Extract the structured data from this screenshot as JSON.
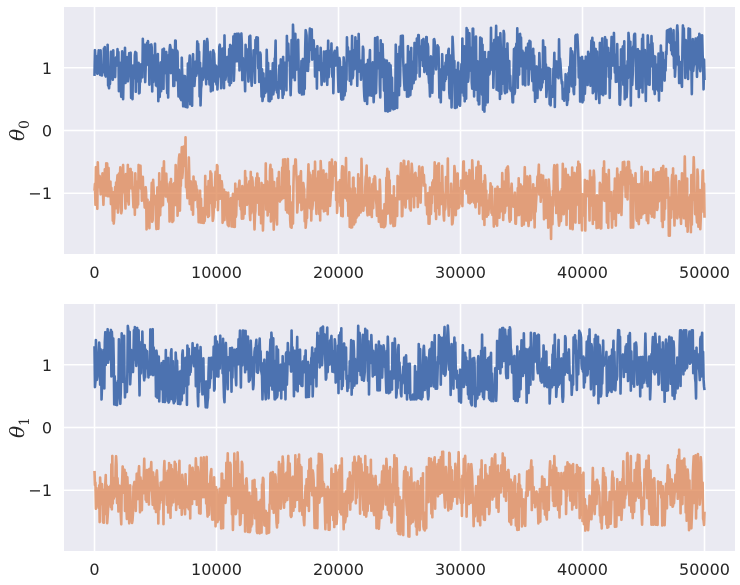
{
  "chart_data": [
    {
      "type": "line",
      "title": "",
      "xlabel": "",
      "ylabel_symbol": "θ",
      "ylabel_subscript": "0",
      "xlim": [
        -2500,
        52500
      ],
      "ylim": [
        -1.97,
        1.97
      ],
      "xticks": [
        0,
        10000,
        20000,
        30000,
        40000,
        50000
      ],
      "xtick_labels": [
        "0",
        "10000",
        "20000",
        "30000",
        "40000",
        "50000"
      ],
      "yticks": [
        1,
        0,
        -1
      ],
      "ytick_labels": [
        "1",
        "0",
        "−1"
      ],
      "grid": true,
      "series": [
        {
          "color": "#4c72b0",
          "alpha": 1.0,
          "mean": 1.0,
          "x": [
            0,
            2000,
            4000,
            6000,
            8000,
            10000,
            12000,
            14000,
            16000,
            18000,
            20000,
            22000,
            24000,
            26000,
            28000,
            30000,
            32000,
            34000,
            36000,
            38000,
            40000,
            42000,
            44000,
            46000,
            48000,
            50000
          ],
          "upper": [
            1.3,
            1.45,
            1.5,
            1.45,
            1.4,
            1.5,
            1.55,
            1.45,
            1.75,
            1.6,
            1.5,
            1.55,
            1.45,
            1.55,
            1.45,
            1.65,
            1.6,
            1.75,
            1.5,
            1.45,
            1.55,
            1.6,
            1.55,
            1.5,
            1.7,
            1.5
          ],
          "lower": [
            0.6,
            0.5,
            0.5,
            0.45,
            0.35,
            0.5,
            0.45,
            0.45,
            0.55,
            0.6,
            0.5,
            0.45,
            0.3,
            0.45,
            0.4,
            0.35,
            0.3,
            0.45,
            0.45,
            0.35,
            0.45,
            0.4,
            0.35,
            0.4,
            0.35,
            0.6
          ]
        },
        {
          "color": "#dd8452",
          "alpha": 0.75,
          "mean": -1.0,
          "x": [
            0,
            2000,
            4000,
            6000,
            7500,
            8000,
            10000,
            12000,
            14000,
            16000,
            18000,
            20000,
            22000,
            24000,
            26000,
            28000,
            30000,
            32000,
            34000,
            36000,
            38000,
            40000,
            42000,
            44000,
            46000,
            48000,
            50000
          ],
          "upper": [
            -0.5,
            -0.55,
            -0.55,
            -0.45,
            -0.1,
            -0.6,
            -0.55,
            -0.6,
            -0.5,
            -0.45,
            -0.5,
            -0.45,
            -0.4,
            -0.45,
            -0.5,
            -0.4,
            -0.5,
            -0.45,
            -0.55,
            -0.45,
            -0.55,
            -0.45,
            -0.5,
            -0.5,
            -0.45,
            -0.35,
            -0.45
          ],
          "lower": [
            -1.4,
            -1.55,
            -1.6,
            -1.55,
            -1.4,
            -1.45,
            -1.5,
            -1.55,
            -1.6,
            -1.55,
            -1.55,
            -1.6,
            -1.5,
            -1.55,
            -1.45,
            -1.5,
            -1.5,
            -1.55,
            -1.5,
            -1.55,
            -1.8,
            -1.6,
            -1.55,
            -1.6,
            -1.65,
            -1.7,
            -1.6
          ]
        }
      ]
    },
    {
      "type": "line",
      "title": "",
      "xlabel": "",
      "ylabel_symbol": "θ",
      "ylabel_subscript": "1",
      "xlim": [
        -2500,
        52500
      ],
      "ylim": [
        -1.97,
        1.97
      ],
      "xticks": [
        0,
        10000,
        20000,
        30000,
        40000,
        50000
      ],
      "xtick_labels": [
        "0",
        "10000",
        "20000",
        "30000",
        "40000",
        "50000"
      ],
      "yticks": [
        1,
        0,
        -1
      ],
      "ytick_labels": [
        "1",
        "0",
        "−1"
      ],
      "grid": true,
      "series": [
        {
          "color": "#4c72b0",
          "alpha": 1.0,
          "mean": 1.0,
          "x": [
            0,
            2000,
            4000,
            6000,
            8000,
            10000,
            12000,
            14000,
            16000,
            18000,
            20000,
            22000,
            24000,
            26000,
            28000,
            30000,
            32000,
            34000,
            36000,
            38000,
            40000,
            42000,
            44000,
            46000,
            48000,
            50000
          ],
          "upper": [
            1.45,
            1.7,
            1.55,
            1.6,
            1.5,
            1.45,
            1.55,
            1.5,
            1.55,
            1.5,
            1.8,
            1.6,
            1.5,
            1.5,
            1.7,
            1.55,
            1.55,
            1.6,
            1.5,
            1.6,
            1.55,
            1.6,
            1.5,
            1.6,
            1.55,
            1.55
          ],
          "lower": [
            0.45,
            0.35,
            0.45,
            0.4,
            0.35,
            0.3,
            0.45,
            0.45,
            0.45,
            0.5,
            0.55,
            0.4,
            0.35,
            0.45,
            0.45,
            0.4,
            0.3,
            0.45,
            0.35,
            0.4,
            0.45,
            0.2,
            0.35,
            0.4,
            0.3,
            0.55
          ]
        },
        {
          "color": "#dd8452",
          "alpha": 0.75,
          "mean": -1.0,
          "x": [
            0,
            2000,
            4000,
            6000,
            8000,
            10000,
            12000,
            14000,
            16000,
            18000,
            20000,
            22000,
            24000,
            26000,
            28000,
            30000,
            32000,
            34000,
            36000,
            38000,
            40000,
            42000,
            44000,
            46000,
            48000,
            50000
          ],
          "upper": [
            -0.55,
            -0.4,
            -0.5,
            -0.45,
            -0.5,
            -0.45,
            -0.3,
            -0.5,
            -0.45,
            -0.4,
            -0.5,
            -0.45,
            -0.5,
            -0.3,
            -0.4,
            -0.35,
            -0.45,
            -0.4,
            -0.45,
            -0.45,
            -0.4,
            -0.45,
            -0.4,
            -0.45,
            -0.35,
            -0.45
          ],
          "lower": [
            -1.5,
            -1.55,
            -1.5,
            -1.55,
            -1.5,
            -1.6,
            -1.65,
            -1.7,
            -1.55,
            -1.6,
            -1.65,
            -1.55,
            -1.65,
            -1.75,
            -1.55,
            -1.6,
            -1.55,
            -1.65,
            -1.6,
            -1.55,
            -1.65,
            -1.6,
            -1.55,
            -1.55,
            -1.6,
            -1.7
          ]
        }
      ]
    }
  ]
}
